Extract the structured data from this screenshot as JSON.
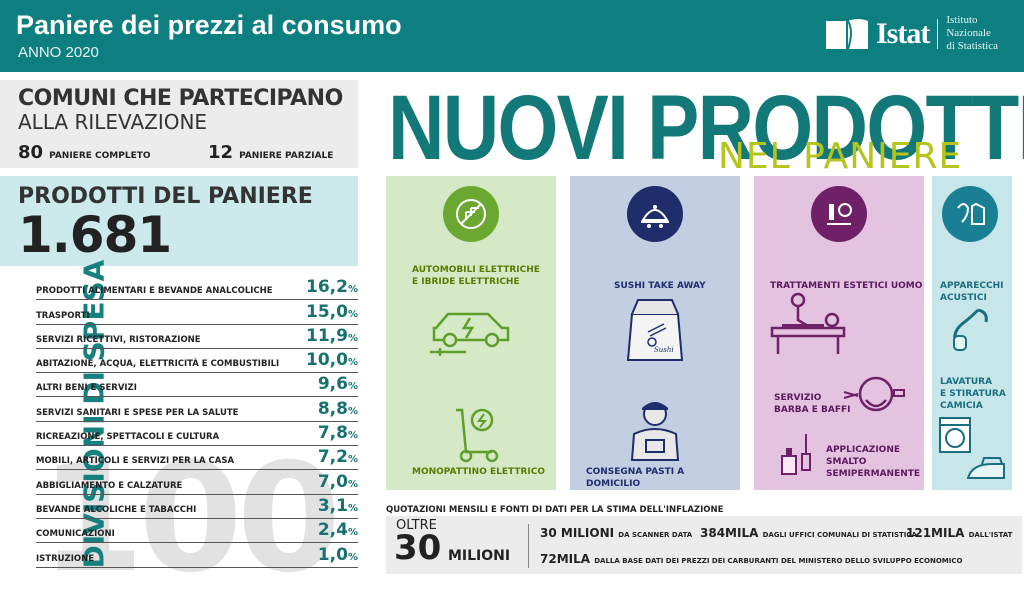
{
  "header": {
    "title": "Paniere dei prezzi al consumo",
    "subtitle": "ANNO 2020",
    "logo_name": "Istat",
    "logo_inst_line1": "Istituto Nazionale",
    "logo_inst_line2": "di Statistica"
  },
  "comuni": {
    "title_line1": "COMUNI CHE PARTECIPANO",
    "title_line2": "ALLA RILEVAZIONE",
    "complete_num": "80",
    "complete_label": "PANIERE COMPLETO",
    "partial_num": "12",
    "partial_label": "PANIERE PARZIALE"
  },
  "prodotti": {
    "title": "PRODOTTI DEL PANIERE",
    "count": "1.681"
  },
  "divisioni": {
    "label": "DIVISIONI DI SPESA",
    "watermark": "100",
    "items": [
      {
        "label": "PRODOTTI ALIMENTARI E BEVANDE ANALCOLICHE",
        "value": "16,2"
      },
      {
        "label": "TRASPORTI",
        "value": "15,0"
      },
      {
        "label": "SERVIZI RICETTIVI, RISTORAZIONE",
        "value": "11,9"
      },
      {
        "label": "ABITAZIONE, ACQUA, ELETTRICITÀ E COMBUSTIBILI",
        "value": "10,0"
      },
      {
        "label": "ALTRI BENI E SERVIZI",
        "value": "9,6"
      },
      {
        "label": "SERVIZI SANITARI E SPESE PER LA SALUTE",
        "value": "8,8"
      },
      {
        "label": "RICREAZIONE, SPETTACOLI E CULTURA",
        "value": "7,8"
      },
      {
        "label": "MOBILI, ARTICOLI E SERVIZI PER LA CASA",
        "value": "7,2"
      },
      {
        "label": "ABBIGLIAMENTO E CALZATURE",
        "value": "7,0"
      },
      {
        "label": "BEVANDE ALCOLICHE E TABACCHI",
        "value": "3,1"
      },
      {
        "label": "COMUNICAZIONI",
        "value": "2,4"
      },
      {
        "label": "ISTRUZIONE",
        "value": "1,0"
      }
    ],
    "unit": "%"
  },
  "nuovi": {
    "title": "NUOVI PRODOTTI",
    "subtitle": "NEL PANIERE"
  },
  "panels": {
    "green": {
      "item1_l1": "AUTOMOBILI ELETTRICHE",
      "item1_l2": "E IBRIDE ELETTRICHE",
      "item2": "MONOPATTINO ELETTRICO"
    },
    "blue": {
      "item1": "SUSHI TAKE AWAY",
      "item2": "CONSEGNA PASTI A DOMICILIO",
      "box_text": "Sushi"
    },
    "pink": {
      "item1": "TRATTAMENTI ESTETICI UOMO",
      "item2_l1": "SERVIZIO",
      "item2_l2": "BARBA E BAFFI",
      "item3_l1": "APPLICAZIONE",
      "item3_l2": "SMALTO",
      "item3_l3": "SEMIPERMANENTE"
    },
    "teal": {
      "item1_l1": "APPARECCHI",
      "item1_l2": "ACUSTICI",
      "item2_l1": "LAVATURA",
      "item2_l2": "E STIRATURA",
      "item2_l3": "CAMICIA"
    }
  },
  "quotazioni": {
    "title": "QUOTAZIONI MENSILI E FONTI DI DATI PER LA STIMA DELL'INFLAZIONE",
    "oltre": "OLTRE",
    "num": "30",
    "unit": "MILIONI",
    "s1_num": "30 MILIONI",
    "s1_label": "DA SCANNER DATA",
    "s2_num": "384MILA",
    "s2_label": "DAGLI UFFICI COMUNALI DI STATISTICA",
    "s3_num": "121MILA",
    "s3_label": "DALL'ISTAT",
    "s4_num": "72MILA",
    "s4_label": "DALLA BASE DATI DEI PREZZI DEI CARBURANTI DEL MINISTERO DELLO SVILUPPO ECONOMICO"
  },
  "colors": {
    "teal": "#0e7f80",
    "lime": "#b6c51c",
    "green_panel": "#d6e9c7",
    "blue_panel": "#c2cee1",
    "pink_panel": "#e3c3df"
  }
}
